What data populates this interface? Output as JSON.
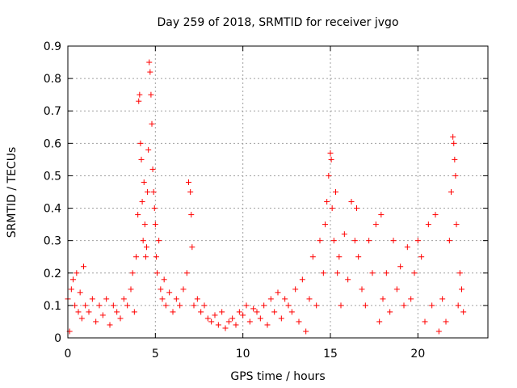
{
  "chart_data": {
    "type": "scatter",
    "title": "Day 259 of 2018, SRMTID for receiver jvgo",
    "xlabel": "GPS time / hours",
    "ylabel": "SRMTID / TECUs",
    "xlim": [
      0,
      24
    ],
    "ylim": [
      0,
      0.9
    ],
    "xticks": [
      "0",
      "5",
      "10",
      "15",
      "20"
    ],
    "yticks": [
      "0",
      "0.1",
      "0.2",
      "0.3",
      "0.4",
      "0.5",
      "0.6",
      "0.7",
      "0.8",
      "0.9"
    ],
    "grid": true,
    "marker": "+",
    "color": "#ff0000",
    "series": [
      {
        "name": "SRMTID",
        "x": [
          0.0,
          0.1,
          0.2,
          0.3,
          0.4,
          0.5,
          0.6,
          0.7,
          0.8,
          0.9,
          1.0,
          1.2,
          1.4,
          1.6,
          1.8,
          2.0,
          2.2,
          2.4,
          2.6,
          2.8,
          3.0,
          3.2,
          3.4,
          3.6,
          3.7,
          3.8,
          3.9,
          4.0,
          4.05,
          4.1,
          4.15,
          4.2,
          4.25,
          4.3,
          4.35,
          4.4,
          4.45,
          4.5,
          4.55,
          4.6,
          4.65,
          4.7,
          4.75,
          4.8,
          4.85,
          4.9,
          4.95,
          5.0,
          5.05,
          5.1,
          5.2,
          5.3,
          5.4,
          5.5,
          5.6,
          5.8,
          6.0,
          6.2,
          6.4,
          6.6,
          6.8,
          6.9,
          7.0,
          7.05,
          7.1,
          7.2,
          7.4,
          7.6,
          7.8,
          8.0,
          8.2,
          8.4,
          8.6,
          8.8,
          9.0,
          9.2,
          9.4,
          9.6,
          9.8,
          10.0,
          10.2,
          10.4,
          10.6,
          10.8,
          11.0,
          11.2,
          11.4,
          11.6,
          11.8,
          12.0,
          12.2,
          12.4,
          12.6,
          12.8,
          13.0,
          13.2,
          13.4,
          13.6,
          13.8,
          14.0,
          14.2,
          14.4,
          14.6,
          14.7,
          14.8,
          14.9,
          15.0,
          15.05,
          15.1,
          15.2,
          15.3,
          15.4,
          15.5,
          15.6,
          15.8,
          16.0,
          16.2,
          16.4,
          16.5,
          16.6,
          16.8,
          17.0,
          17.2,
          17.4,
          17.6,
          17.8,
          17.9,
          18.0,
          18.2,
          18.4,
          18.6,
          18.8,
          19.0,
          19.2,
          19.4,
          19.6,
          19.8,
          20.0,
          20.2,
          20.4,
          20.6,
          20.8,
          21.0,
          21.2,
          21.4,
          21.6,
          21.8,
          21.9,
          22.0,
          22.05,
          22.1,
          22.15,
          22.2,
          22.3,
          22.4,
          22.5,
          22.6
        ],
        "y": [
          0.12,
          0.02,
          0.15,
          0.18,
          0.1,
          0.2,
          0.08,
          0.14,
          0.06,
          0.22,
          0.1,
          0.08,
          0.12,
          0.05,
          0.1,
          0.07,
          0.12,
          0.04,
          0.1,
          0.08,
          0.06,
          0.12,
          0.1,
          0.15,
          0.2,
          0.08,
          0.25,
          0.38,
          0.73,
          0.75,
          0.6,
          0.55,
          0.42,
          0.3,
          0.48,
          0.35,
          0.25,
          0.28,
          0.45,
          0.58,
          0.85,
          0.82,
          0.75,
          0.66,
          0.52,
          0.45,
          0.4,
          0.35,
          0.25,
          0.2,
          0.3,
          0.15,
          0.12,
          0.18,
          0.1,
          0.14,
          0.08,
          0.12,
          0.1,
          0.15,
          0.2,
          0.48,
          0.45,
          0.38,
          0.28,
          0.1,
          0.12,
          0.08,
          0.1,
          0.06,
          0.05,
          0.07,
          0.04,
          0.08,
          0.03,
          0.05,
          0.06,
          0.04,
          0.08,
          0.07,
          0.1,
          0.05,
          0.09,
          0.08,
          0.06,
          0.1,
          0.04,
          0.12,
          0.08,
          0.14,
          0.06,
          0.12,
          0.1,
          0.08,
          0.15,
          0.05,
          0.18,
          0.02,
          0.12,
          0.25,
          0.1,
          0.3,
          0.2,
          0.35,
          0.42,
          0.5,
          0.57,
          0.55,
          0.4,
          0.3,
          0.45,
          0.2,
          0.25,
          0.1,
          0.32,
          0.18,
          0.42,
          0.3,
          0.4,
          0.25,
          0.15,
          0.1,
          0.3,
          0.2,
          0.35,
          0.05,
          0.38,
          0.12,
          0.2,
          0.08,
          0.3,
          0.15,
          0.22,
          0.1,
          0.28,
          0.12,
          0.2,
          0.3,
          0.25,
          0.05,
          0.35,
          0.1,
          0.38,
          0.02,
          0.12,
          0.05,
          0.3,
          0.45,
          0.62,
          0.6,
          0.55,
          0.5,
          0.35,
          0.1,
          0.2,
          0.15,
          0.08
        ]
      }
    ]
  }
}
